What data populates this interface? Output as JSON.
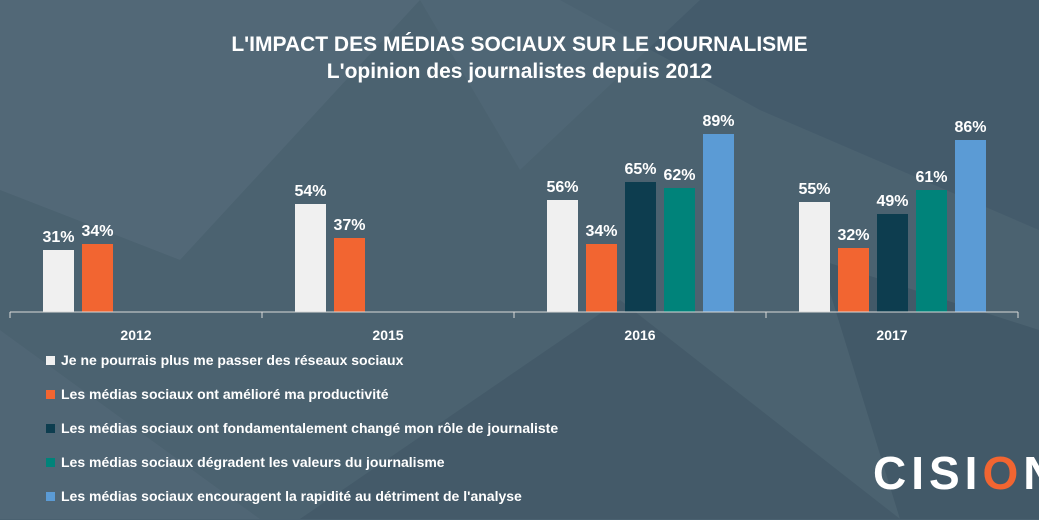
{
  "chart_data": {
    "type": "bar",
    "title": "L'IMPACT DES MÉDIAS SOCIAUX SUR LE JOURNALISME",
    "subtitle": "L'opinion des journalistes depuis 2012",
    "categories": [
      "2012",
      "2015",
      "2016",
      "2017"
    ],
    "ylim": [
      0,
      100
    ],
    "grid": false,
    "legend_position": "bottom-left",
    "series": [
      {
        "name": "Je ne pourrais plus me passer des réseaux sociaux",
        "color": "#f0f0f0",
        "values": [
          31,
          54,
          56,
          55
        ]
      },
      {
        "name": "Les médias sociaux ont amélioré ma productivité",
        "color": "#f26531",
        "values": [
          34,
          37,
          34,
          32
        ]
      },
      {
        "name": "Les médias sociaux ont fondamentalement changé mon rôle de journaliste",
        "color": "#0d3d4f",
        "values": [
          null,
          null,
          65,
          49
        ]
      },
      {
        "name": "Les médias sociaux dégradent les valeurs du journalisme",
        "color": "#00837a",
        "values": [
          null,
          null,
          62,
          61
        ]
      },
      {
        "name": "Les médias sociaux encouragent la rapidité au détriment de l'analyse",
        "color": "#5b9bd5",
        "values": [
          null,
          null,
          89,
          86
        ]
      }
    ],
    "value_suffix": "%"
  },
  "logo": {
    "before": "CISI",
    "accent": "O",
    "after": "N",
    "mark": "®"
  }
}
